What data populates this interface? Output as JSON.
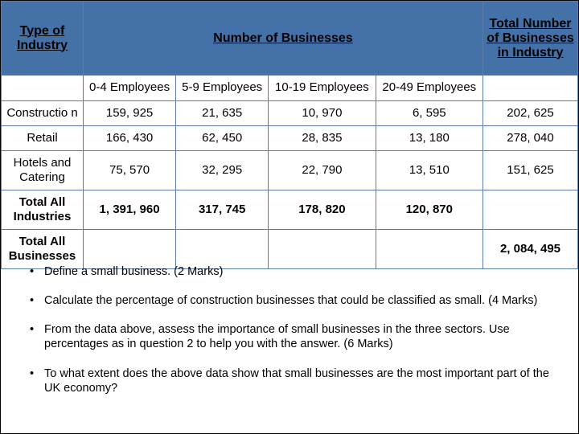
{
  "table": {
    "headers": {
      "industry": "Type of Industry",
      "number": "Number of Businesses",
      "total": "Total Number of Businesses in Industry"
    },
    "subheaders": [
      "0-4 Employees",
      "5-9 Employees",
      "10-19 Employees",
      "20-49 Employees"
    ],
    "rows": [
      {
        "label": "Constructio n",
        "cells": [
          "159, 925",
          "21, 635",
          "10, 970",
          "6, 595",
          "202, 625"
        ],
        "bold": false
      },
      {
        "label": "Retail",
        "cells": [
          "166, 430",
          "62, 450",
          "28, 835",
          "13, 180",
          "278, 040"
        ],
        "bold": false
      },
      {
        "label": "Hotels and Catering",
        "cells": [
          "75, 570",
          "32, 295",
          "22, 790",
          "13, 510",
          "151, 625"
        ],
        "bold": false
      },
      {
        "label": "Total All Industries",
        "cells": [
          "1, 391, 960",
          "317, 745",
          "178, 820",
          "120, 870",
          ""
        ],
        "bold": true
      },
      {
        "label": "Total All Businesses",
        "cells": [
          "",
          "",
          "",
          "",
          "2, 084, 495"
        ],
        "bold": true
      }
    ]
  },
  "questions": [
    "Define a small business. (2 Marks)",
    "Calculate the percentage of construction businesses that could be classified as small. (4 Marks)",
    "From the data above, assess the importance of small businesses in the three sectors. Use percentages as in question 2 to help you with the answer. (6 Marks)",
    "To what extent does the above data show that small businesses are the most important part of the UK economy?"
  ],
  "colors": {
    "header_bg": "#4472a8",
    "border": "#5b7da8",
    "text": "#000000",
    "bg": "#ffffff"
  }
}
